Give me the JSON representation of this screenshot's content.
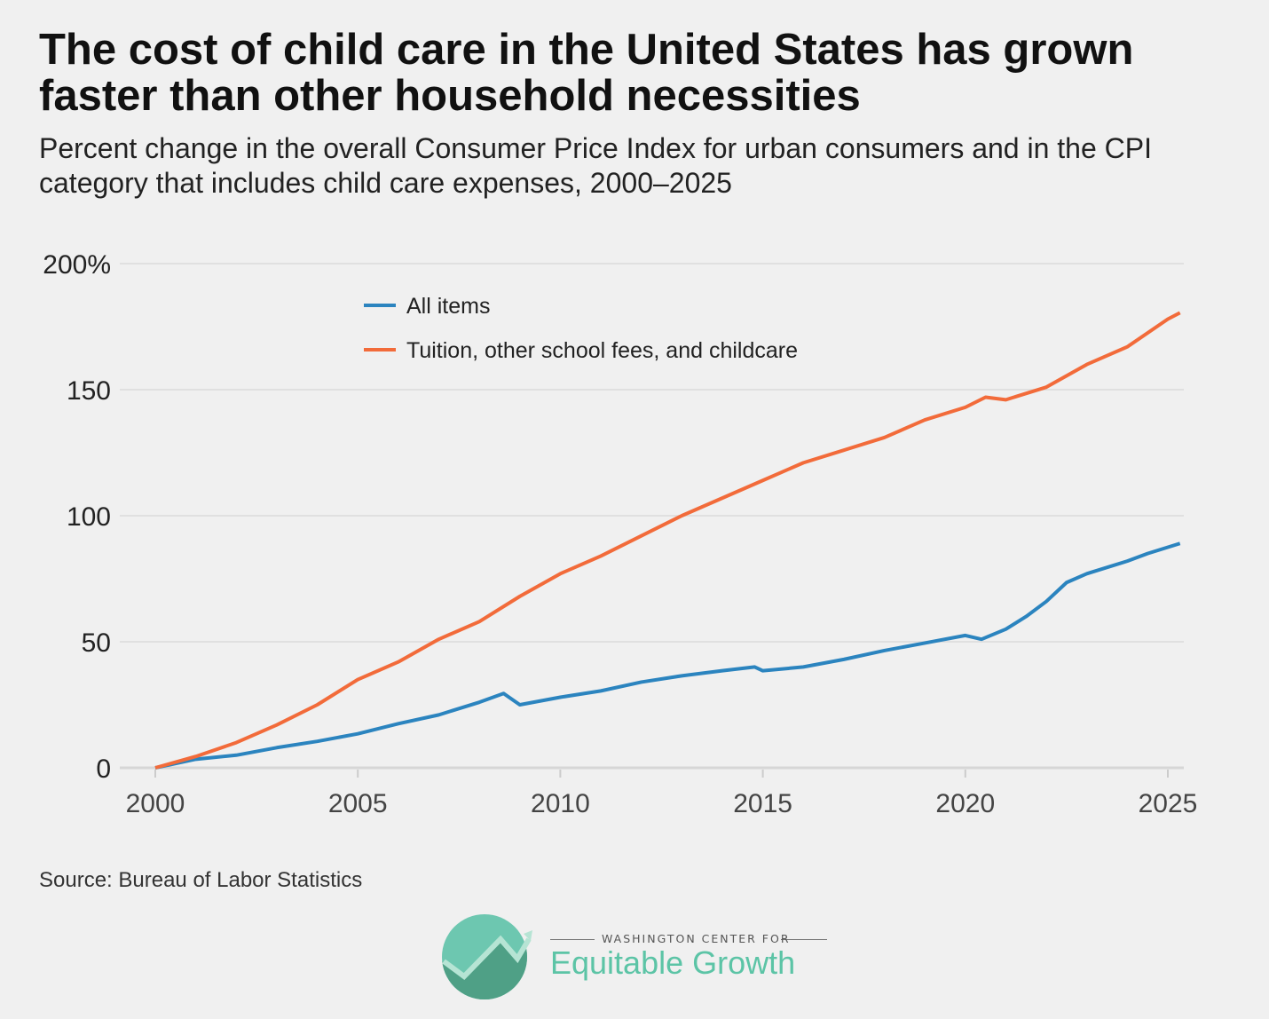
{
  "title": "The cost of child care in the United States has grown faster than other household necessities",
  "subtitle": "Percent change in the overall Consumer Price Index for urban consumers and in the CPI category that includes child care expenses, 2000–2025",
  "source": "Source: Bureau of Labor Statistics",
  "logo": {
    "top": "WASHINGTON CENTER FOR",
    "name": "Equitable Growth"
  },
  "chart_data": {
    "type": "line",
    "xlim": [
      2000,
      2025.4
    ],
    "ylim": [
      0,
      200
    ],
    "xticks": [
      2000,
      2005,
      2010,
      2015,
      2020,
      2025
    ],
    "xtick_labels": [
      "2000",
      "2005",
      "2010",
      "2015",
      "2020",
      "2025"
    ],
    "yticks": [
      0,
      50,
      100,
      150,
      200
    ],
    "ytick_labels": [
      "0",
      "50",
      "100",
      "150",
      "200%"
    ],
    "grid": true,
    "legend_position": "top-left",
    "series": [
      {
        "name": "All items",
        "color": "#2b84bf",
        "x": [
          2000,
          2001,
          2002,
          2003,
          2004,
          2005,
          2006,
          2007,
          2008,
          2008.6,
          2009,
          2010,
          2011,
          2012,
          2013,
          2014,
          2014.8,
          2015,
          2016,
          2017,
          2018,
          2019,
          2020,
          2020.4,
          2021,
          2021.5,
          2022,
          2022.5,
          2023,
          2024,
          2024.5,
          2025.3
        ],
        "y": [
          0,
          3.4,
          5,
          8,
          10.5,
          13.5,
          17.5,
          21,
          26,
          29.5,
          25,
          28,
          30.5,
          34,
          36.5,
          38.5,
          40,
          38.5,
          40,
          43,
          46.5,
          49.5,
          52.5,
          51,
          55,
          60,
          66,
          73.5,
          77,
          82,
          85,
          89
        ]
      },
      {
        "name": "Tuition, other school fees, and childcare",
        "color": "#f26b3a",
        "x": [
          2000,
          2001,
          2002,
          2003,
          2004,
          2005,
          2006,
          2007,
          2008,
          2009,
          2010,
          2011,
          2012,
          2013,
          2014,
          2015,
          2016,
          2017,
          2018,
          2019,
          2020,
          2020.5,
          2021,
          2022,
          2023,
          2024,
          2025,
          2025.3
        ],
        "y": [
          0,
          4.5,
          10,
          17,
          25,
          35,
          42,
          51,
          58,
          68,
          77,
          84,
          92,
          100,
          107,
          114,
          121,
          126,
          131,
          138,
          143,
          147,
          146,
          151,
          160,
          167,
          178,
          180.5
        ]
      }
    ]
  }
}
